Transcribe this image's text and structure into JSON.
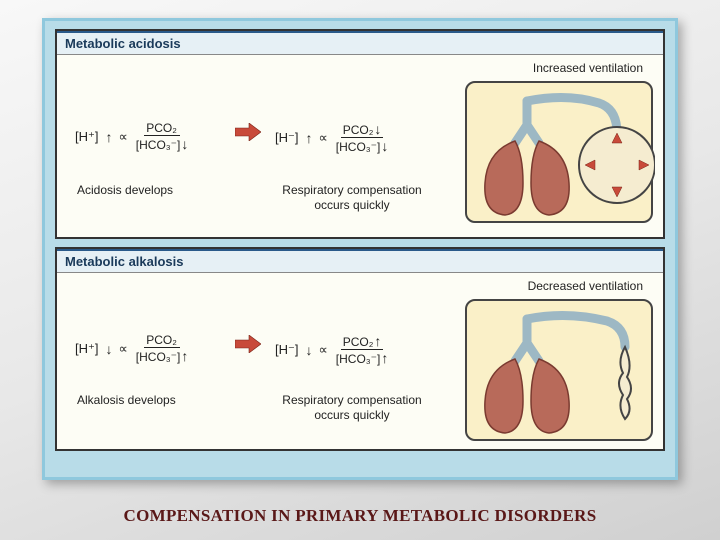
{
  "title": "COMPENSATION IN PRIMARY METABOLIC DISORDERS",
  "colors": {
    "frame_bg": "#b8dce8",
    "frame_border": "#8fc8dd",
    "panel_border": "#333333",
    "header_bg": "#e6f0f5",
    "header_border": "#2a5a8a",
    "body_bg": "#fdfdf5",
    "lung_box_bg": "#faf0c8",
    "lung_color": "#b86a5a",
    "airway_color": "#9db8c4",
    "arrow_red": "#c84a3a",
    "arrow_dark": "#7a2518",
    "text": "#222222",
    "title_color": "#5a1818"
  },
  "panels": {
    "acidosis": {
      "header": "Metabolic acidosis",
      "vent_label": "Increased ventilation",
      "left_caption": "Acidosis develops",
      "right_caption": "Respiratory compensation\noccurs quickly",
      "formula1": {
        "h": "[H⁺]",
        "h_dir": "↑",
        "prop": "∝",
        "num": "PCO₂",
        "num_dir": "",
        "den": "[HCO₃⁻]",
        "den_dir": "↓"
      },
      "formula2": {
        "h": "[H⁻]",
        "h_dir": "↑",
        "prop": "∝",
        "num": "PCO₂",
        "num_dir": "↓",
        "den": "[HCO₃⁻]",
        "den_dir": "↓"
      },
      "ventilation": "increased"
    },
    "alkalosis": {
      "header": "Metabolic alkalosis",
      "vent_label": "Decreased ventilation",
      "left_caption": "Alkalosis develops",
      "right_caption": "Respiratory compensation\noccurs quickly",
      "formula1": {
        "h": "[H⁺]",
        "h_dir": "↓",
        "prop": "∝",
        "num": "PCO₂",
        "num_dir": "",
        "den": "[HCO₃⁻]",
        "den_dir": "↑"
      },
      "formula2": {
        "h": "[H⁻]",
        "h_dir": "↓",
        "prop": "∝",
        "num": "PCO₂",
        "num_dir": "↑",
        "den": "[HCO₃⁻]",
        "den_dir": "↑"
      },
      "ventilation": "decreased"
    }
  }
}
